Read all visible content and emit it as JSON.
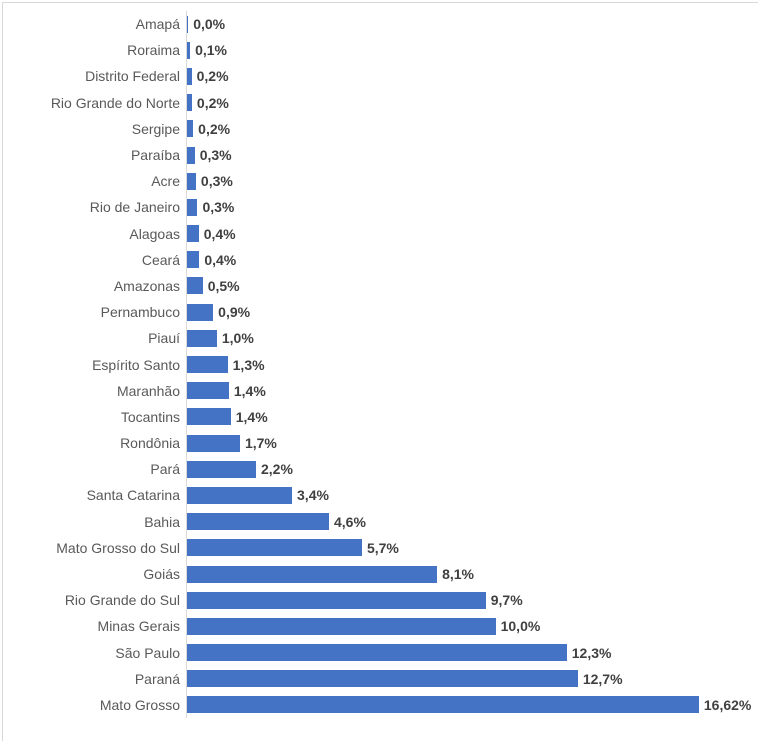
{
  "chart_data": {
    "type": "bar",
    "orientation": "horizontal",
    "title": "",
    "xlabel": "",
    "ylabel": "",
    "xlim": [
      0,
      17.5
    ],
    "grid": false,
    "legend": "none",
    "data_labels": "outside-end",
    "bar_color": "#4472C4",
    "axis_line_color": "#D9D9D9",
    "category_label_color": "#595959",
    "value_label_color": "#404040",
    "categories": [
      "Amapá",
      "Roraima",
      "Distrito Federal",
      "Rio Grande do Norte",
      "Sergipe",
      "Paraíba",
      "Acre",
      "Rio de Janeiro",
      "Alagoas",
      "Ceará",
      "Amazonas",
      "Pernambuco",
      "Piauí",
      "Espírito Santo",
      "Maranhão",
      "Tocantins",
      "Rondônia",
      "Pará",
      "Santa Catarina",
      "Bahia",
      "Mato Grosso do Sul",
      "Goiás",
      "Rio Grande do Sul",
      "Minas Gerais",
      "São Paulo",
      "Paraná",
      "Mato Grosso"
    ],
    "values": [
      0.04,
      0.1,
      0.15,
      0.16,
      0.2,
      0.25,
      0.29,
      0.34,
      0.38,
      0.4,
      0.51,
      0.85,
      0.97,
      1.32,
      1.36,
      1.42,
      1.72,
      2.24,
      3.41,
      4.61,
      5.68,
      8.12,
      9.7,
      10.02,
      12.33,
      12.69,
      16.62
    ],
    "value_labels": [
      "0,0%",
      "0,1%",
      "0,2%",
      "0,2%",
      "0,2%",
      "0,3%",
      "0,3%",
      "0,3%",
      "0,4%",
      "0,4%",
      "0,5%",
      "0,9%",
      "1,0%",
      "1,3%",
      "1,4%",
      "1,4%",
      "1,7%",
      "2,2%",
      "3,4%",
      "4,6%",
      "5,7%",
      "8,1%",
      "9,7%",
      "10,0%",
      "12,3%",
      "12,7%",
      "16,62%"
    ]
  }
}
